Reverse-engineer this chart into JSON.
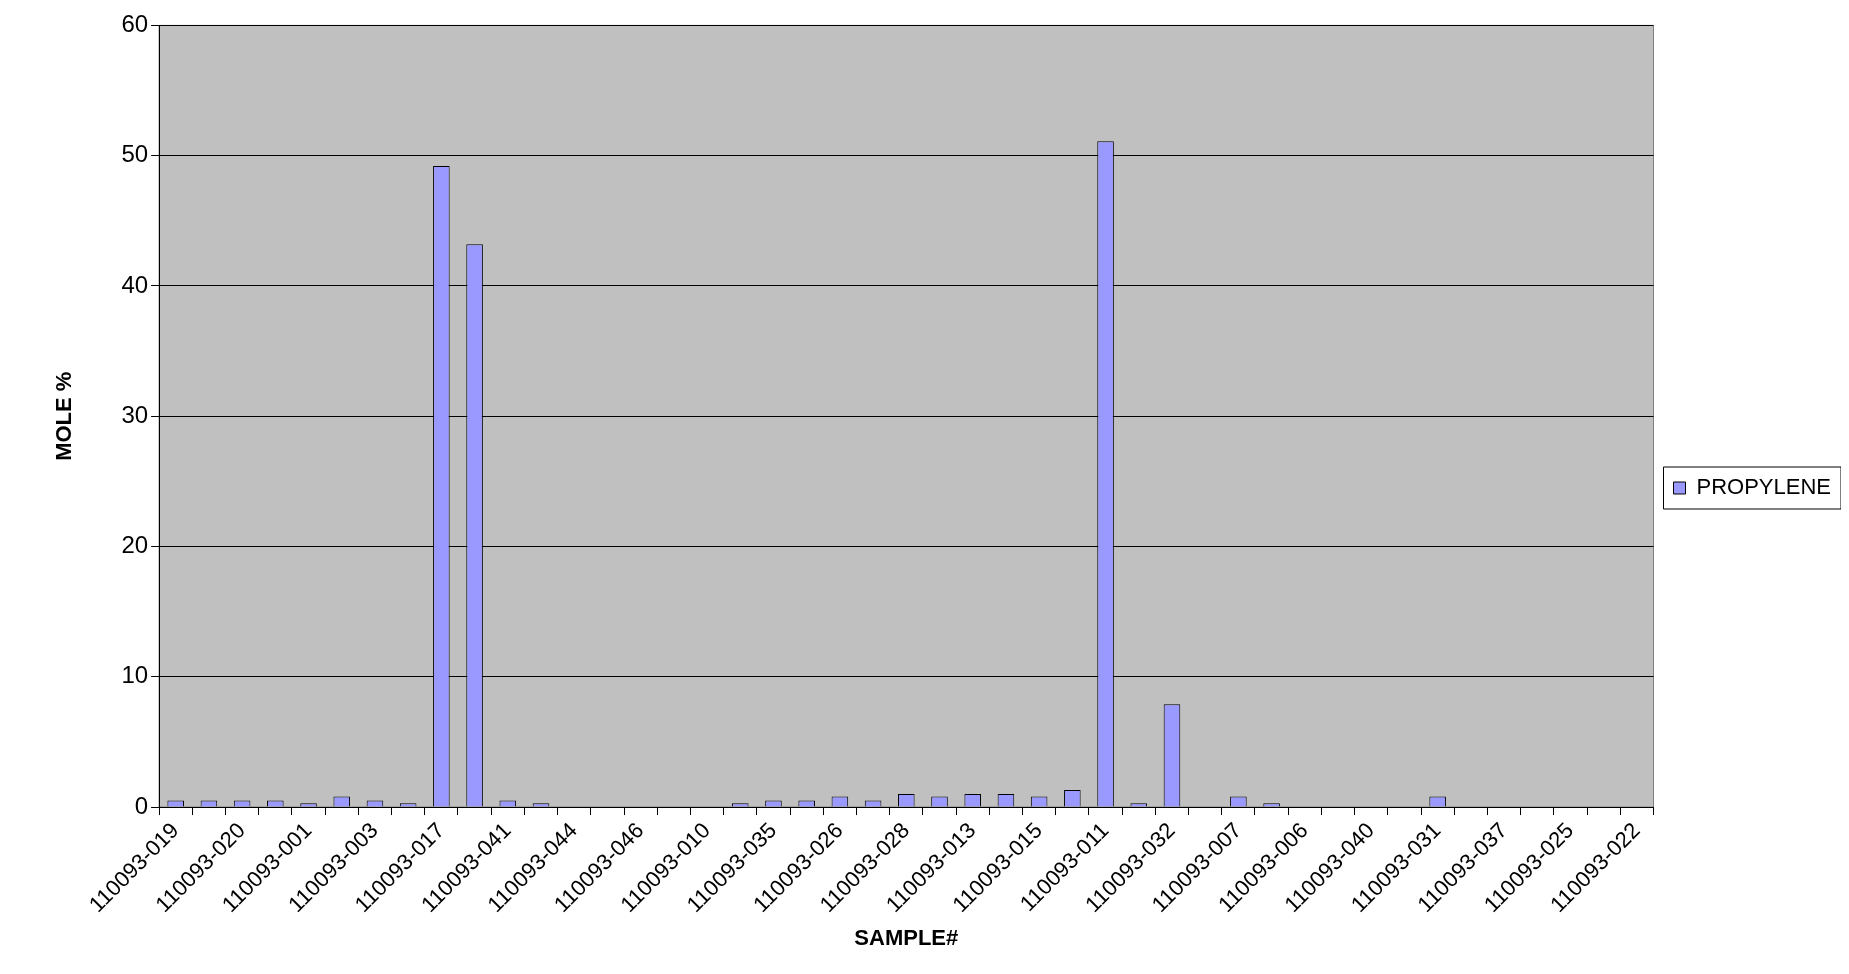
{
  "chart_data": {
    "type": "bar",
    "xlabel": "SAMPLE#",
    "ylabel": "MOLE %",
    "categories": [
      "110093-019",
      null,
      "110093-020",
      null,
      "110093-001",
      null,
      "110093-003",
      null,
      "110093-017",
      null,
      "110093-041",
      null,
      "110093-044",
      null,
      "110093-046",
      null,
      "110093-010",
      null,
      "110093-035",
      null,
      "110093-026",
      null,
      "110093-028",
      null,
      "110093-013",
      null,
      "110093-015",
      null,
      "110093-011",
      null,
      "110093-032",
      null,
      "110093-007",
      null,
      "110093-006",
      null,
      "110093-040",
      null,
      "110093-031",
      null,
      "110093-037",
      null,
      "110093-025",
      null,
      "110093-022"
    ],
    "series": [
      {
        "name": "PROPYLENE",
        "color": "#9999ff",
        "values": [
          0.5,
          0.5,
          0.5,
          0.5,
          0.3,
          0.8,
          0.5,
          0.3,
          49.2,
          43.2,
          0.5,
          0.3,
          null,
          null,
          null,
          null,
          null,
          0.3,
          0.5,
          0.5,
          0.8,
          0.5,
          1.0,
          0.8,
          1.0,
          1.0,
          0.8,
          1.3,
          51.1,
          0.3,
          7.9,
          null,
          0.8,
          0.3,
          null,
          null,
          null,
          null,
          0.8,
          null,
          null,
          null,
          null,
          null,
          null
        ]
      }
    ],
    "ylim": [
      0,
      60
    ],
    "yticks": [
      0,
      10,
      20,
      30,
      40,
      50,
      60
    ],
    "grid": "y",
    "legend": "right"
  }
}
